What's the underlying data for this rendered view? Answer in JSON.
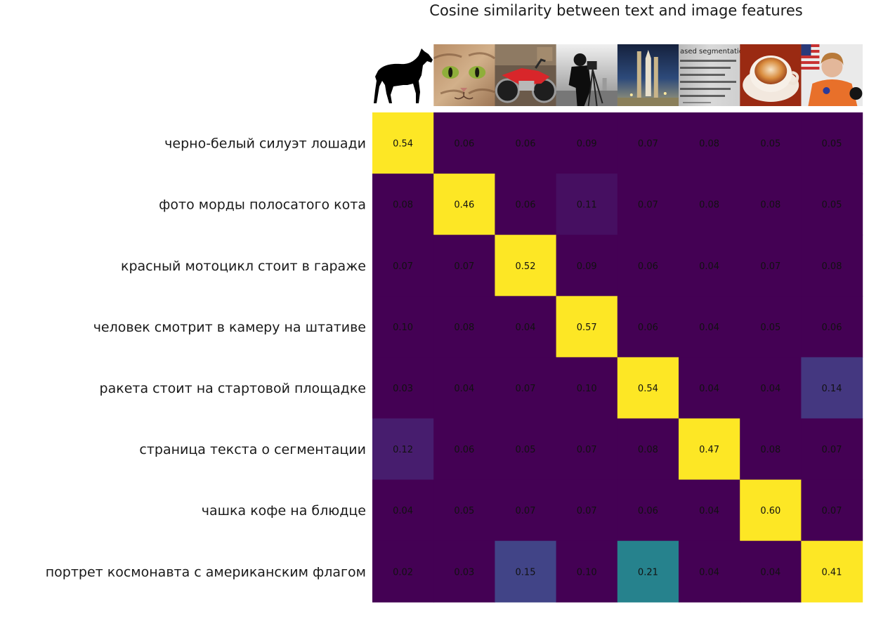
{
  "chart_data": {
    "type": "heatmap",
    "title": "Cosine similarity between text and image features",
    "columns": [
      {
        "image": "horse-silhouette"
      },
      {
        "image": "cat-face"
      },
      {
        "image": "red-motorcycle"
      },
      {
        "image": "camera-man"
      },
      {
        "image": "rocket"
      },
      {
        "image": "text-page"
      },
      {
        "image": "coffee-cup"
      },
      {
        "image": "astronaut"
      }
    ],
    "rows": [
      "черно-белый силуэт лошади",
      "фото морды полосатого кота",
      "красный мотоцикл стоит в гараже",
      "человек смотрит в камеру на штативе",
      "ракета стоит на стартовой площадке",
      "страница текста о сегментации",
      "чашка кофе на блюдце",
      "портрет космонавта с американским флагом"
    ],
    "values": [
      [
        0.54,
        0.06,
        0.06,
        0.09,
        0.07,
        0.08,
        0.05,
        0.05
      ],
      [
        0.08,
        0.46,
        0.06,
        0.11,
        0.07,
        0.08,
        0.08,
        0.05
      ],
      [
        0.07,
        0.07,
        0.52,
        0.09,
        0.06,
        0.04,
        0.07,
        0.08
      ],
      [
        0.1,
        0.08,
        0.04,
        0.57,
        0.06,
        0.04,
        0.05,
        0.06
      ],
      [
        0.03,
        0.04,
        0.07,
        0.1,
        0.54,
        0.04,
        0.04,
        0.14
      ],
      [
        0.12,
        0.06,
        0.05,
        0.07,
        0.08,
        0.47,
        0.08,
        0.07
      ],
      [
        0.04,
        0.05,
        0.07,
        0.07,
        0.06,
        0.04,
        0.6,
        0.07
      ],
      [
        0.02,
        0.03,
        0.15,
        0.1,
        0.21,
        0.04,
        0.04,
        0.41
      ]
    ],
    "value_format": "0.00",
    "vmin": 0.1,
    "vmax": 0.3,
    "colormap": "viridis",
    "grid": false,
    "legend": "none",
    "colors": {
      "low": "#440154",
      "high": "#fde725"
    }
  }
}
